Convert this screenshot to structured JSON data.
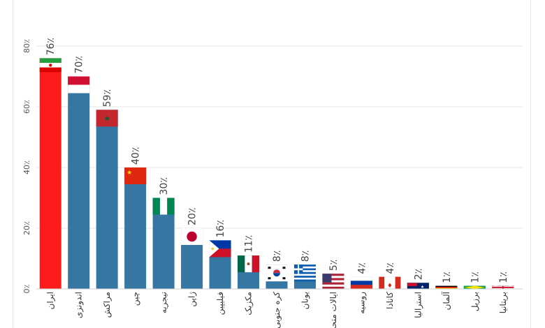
{
  "chart_data": {
    "type": "bar",
    "title": "",
    "xlabel": "",
    "ylabel": "",
    "ylim": [
      0,
      80
    ],
    "grid": true,
    "yticks": [
      "0٪",
      "20٪",
      "40٪",
      "60٪",
      "80٪"
    ],
    "categories": [
      "ایران",
      "اندونزی",
      "مراکش",
      "چین",
      "نیجریه",
      "ژاپن",
      "فیلیپین",
      "مکزیک",
      "کره جنوبی",
      "یونان",
      "ایالات متحده",
      "روسیه",
      "کانادا",
      "استرالیا",
      "آلمان",
      "برزیل",
      "بریتانیا"
    ],
    "values": [
      76,
      70,
      59,
      40,
      30,
      20,
      16,
      11,
      8,
      8,
      5,
      4,
      4,
      2,
      1,
      1,
      1
    ],
    "value_labels": [
      "76٪",
      "70٪",
      "59٪",
      "40٪",
      "30٪",
      "20٪",
      "16٪",
      "11٪",
      "8٪",
      "8٪",
      "5٪",
      "4٪",
      "4٪",
      "2٪",
      "1٪",
      "1٪",
      "1٪"
    ],
    "flags": [
      "iran-flag",
      "indonesia-flag",
      "morocco-flag",
      "china-flag",
      "nigeria-flag",
      "japan-flag",
      "philippines-flag",
      "mexico-flag",
      "south-korea-flag",
      "greece-flag",
      "usa-flag",
      "russia-flag",
      "canada-flag",
      "australia-flag",
      "germany-flag",
      "brazil-flag",
      "uk-flag"
    ],
    "colors": {
      "highlight": "#fe1b1b",
      "bar": "#3576a3",
      "grid": "#e6e6e6",
      "text": "#444444"
    }
  }
}
